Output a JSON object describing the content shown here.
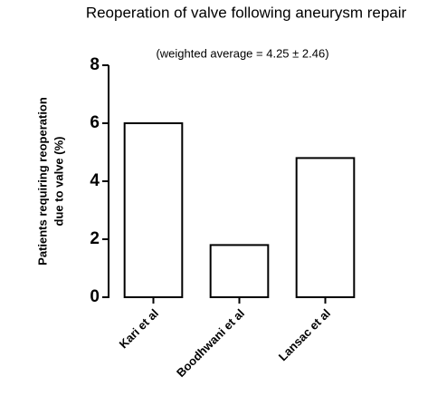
{
  "chart_data": {
    "type": "bar",
    "title": "Reoperation of valve following aneurysm repair",
    "subtitle": "(weighted average = 4.25 ± 2.46)",
    "ylabel": [
      "Patients requiring reoperation",
      "due to valve (%)"
    ],
    "categories": [
      "Kari et al",
      "Boodhwani et al",
      "Lansac et al"
    ],
    "values": [
      6,
      1.8,
      4.8
    ],
    "color": "#ffffff",
    "ylim": [
      0,
      8
    ],
    "yticks": [
      0,
      2,
      4,
      6,
      8
    ],
    "grid": false
  }
}
